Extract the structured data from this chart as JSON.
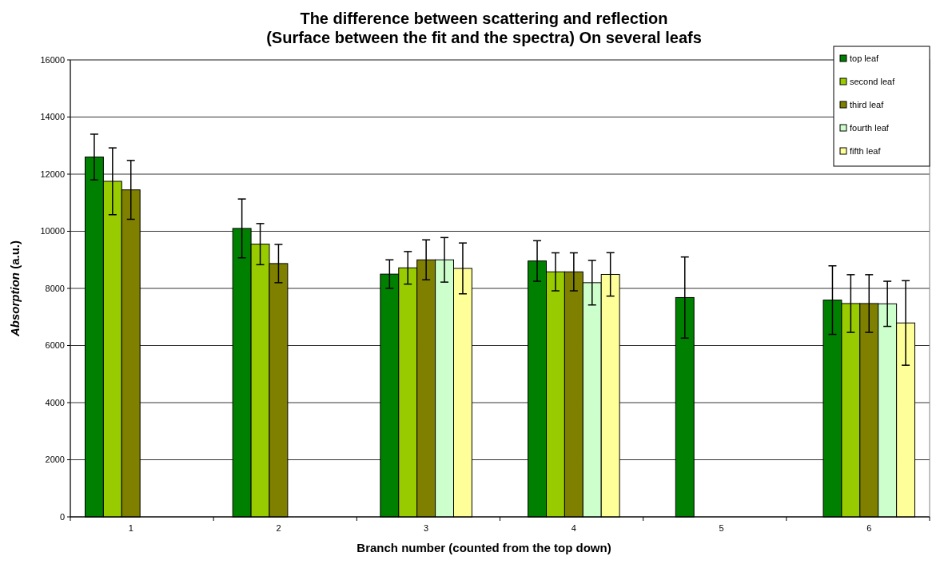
{
  "chart_data": {
    "type": "bar",
    "title": "The difference between scattering and reflection\n(Surface between the fit and the spectra) On several leafs",
    "xlabel": "Branch number (counted from the top down)",
    "ylabel": "Absorption (a.u.)",
    "categories": [
      "1",
      "2",
      "3",
      "4",
      "5",
      "6"
    ],
    "series": [
      {
        "name": "top leaf",
        "color": "#008000",
        "values": [
          12600,
          10100,
          8500,
          8960,
          7680,
          7590
        ],
        "errors": [
          800,
          1030,
          500,
          710,
          1420,
          1200
        ]
      },
      {
        "name": "second leaf",
        "color": "#99cc00",
        "values": [
          11750,
          9550,
          8720,
          8580,
          null,
          7470
        ],
        "errors": [
          1170,
          720,
          570,
          665,
          null,
          1010
        ]
      },
      {
        "name": "third leaf",
        "color": "#808000",
        "values": [
          11450,
          8870,
          9000,
          8580,
          null,
          7470
        ],
        "errors": [
          1030,
          670,
          700,
          665,
          null,
          1010
        ]
      },
      {
        "name": "fourth leaf",
        "color": "#ccffcc",
        "values": [
          null,
          null,
          9000,
          8200,
          null,
          7460
        ],
        "errors": [
          null,
          null,
          780,
          780,
          null,
          790
        ]
      },
      {
        "name": "fifth leaf",
        "color": "#ffff99",
        "values": [
          null,
          null,
          8700,
          8490,
          null,
          6790
        ],
        "errors": [
          null,
          null,
          890,
          760,
          null,
          1480
        ]
      }
    ],
    "ylim": [
      0,
      16000
    ],
    "yticks": [
      0,
      2000,
      4000,
      6000,
      8000,
      10000,
      12000,
      14000,
      16000
    ],
    "grid": "y",
    "legend": "top right"
  }
}
